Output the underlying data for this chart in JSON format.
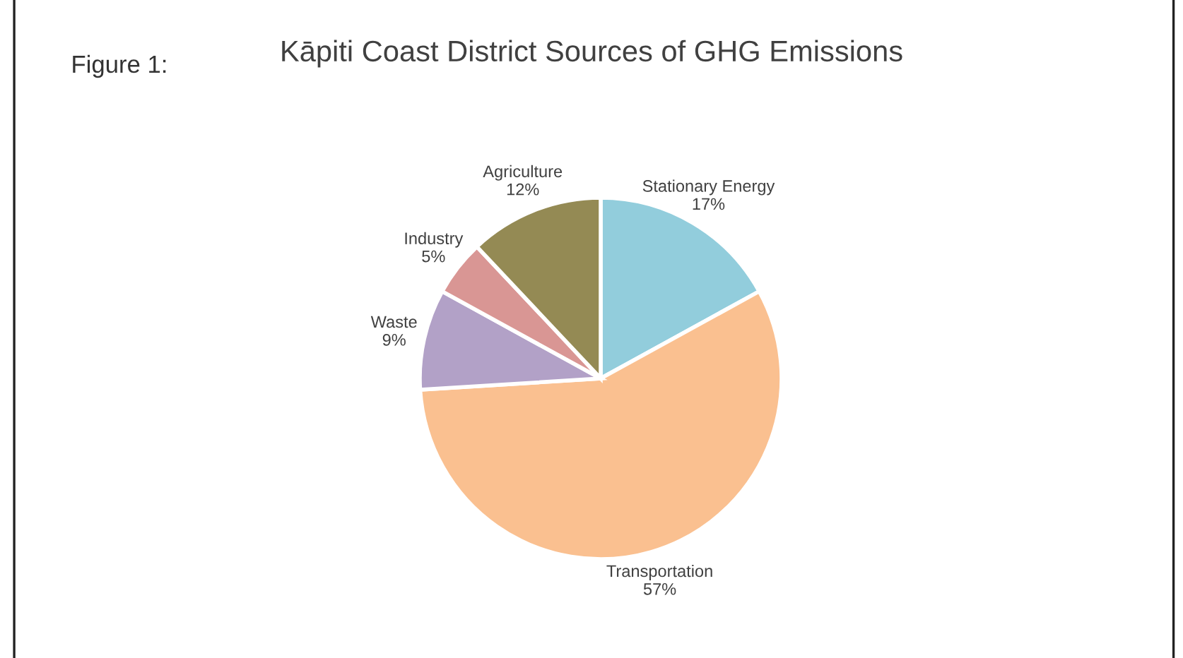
{
  "chart_data": {
    "type": "pie",
    "title": "Kāpiti Coast District Sources of GHG Emissions",
    "annotations": [
      "Figure 1:"
    ],
    "categories": [
      "Stationary Energy",
      "Transportation",
      "Waste",
      "Industry",
      "Agriculture"
    ],
    "values": [
      17,
      57,
      9,
      5,
      12
    ],
    "colors": [
      "#92cddc",
      "#fac090",
      "#b2a1c7",
      "#d99694",
      "#948a54"
    ],
    "value_labels": [
      "17%",
      "57%",
      "9%",
      "5%",
      "12%"
    ],
    "legend": false
  }
}
